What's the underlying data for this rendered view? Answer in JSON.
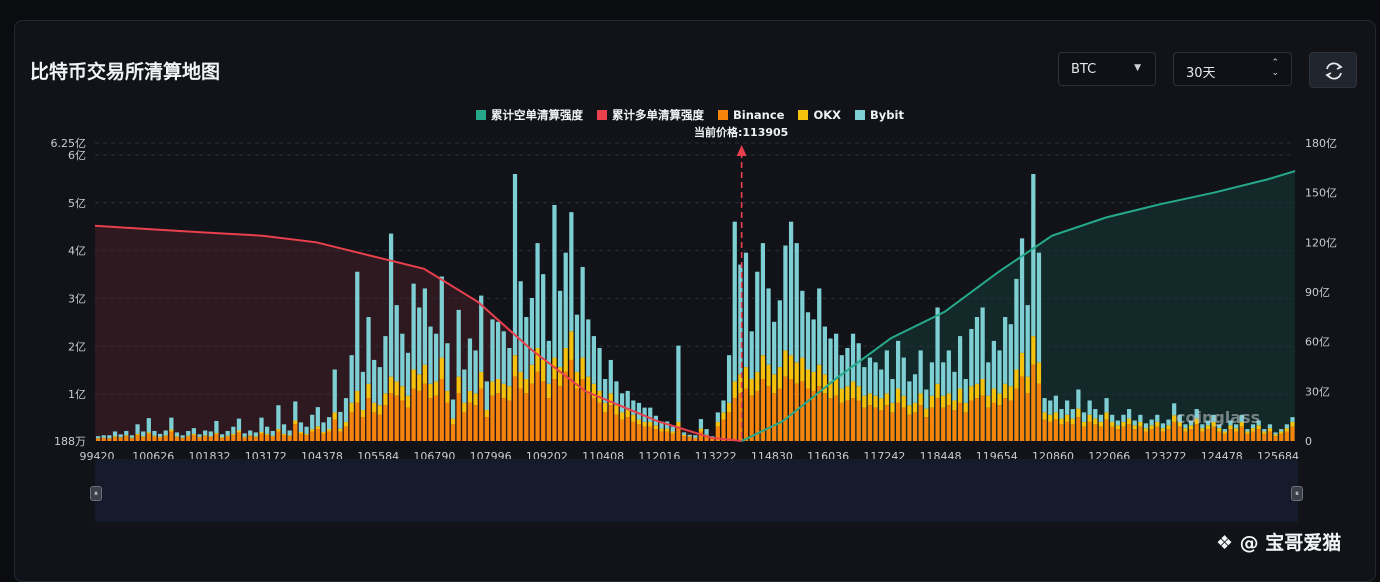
{
  "header": {
    "title": "比特币交易所清算地图",
    "coin_select": "BTC",
    "period_select": "30天"
  },
  "legend": [
    {
      "label": "累计空单清算强度",
      "color": "#26a98a"
    },
    {
      "label": "累计多单清算强度",
      "color": "#e8404c"
    },
    {
      "label": "Binance",
      "color": "#f5840c"
    },
    {
      "label": "OKX",
      "color": "#f4c20d"
    },
    {
      "label": "Bybit",
      "color": "#7ecfd4"
    }
  ],
  "watermark": "coinglass",
  "credit": "@ 宝哥爱猫",
  "chart_data": {
    "type": "bar",
    "current_price_label": "当前价格:113905",
    "current_price": 113905,
    "x_tick_labels": [
      "99420",
      "100626",
      "101832",
      "103172",
      "104378",
      "105584",
      "106790",
      "107996",
      "109202",
      "110408",
      "112016",
      "113222",
      "114830",
      "116036",
      "117242",
      "118448",
      "119654",
      "120860",
      "122066",
      "123272",
      "124478",
      "125684"
    ],
    "y_left_tick_labels": [
      "188万",
      "1亿",
      "2亿",
      "3亿",
      "4亿",
      "5亿",
      "6亿",
      "6.25亿"
    ],
    "y_left_ticks": [
      0.0188,
      1,
      2,
      3,
      4,
      5,
      6,
      6.25
    ],
    "y_left_range": [
      0.0188,
      6.25
    ],
    "y_left_unit": "亿",
    "y_right_tick_labels": [
      "0",
      "30亿",
      "60亿",
      "90亿",
      "120亿",
      "150亿",
      "180亿"
    ],
    "y_right_range": [
      0,
      180
    ],
    "y_right_unit": "亿",
    "x_range": [
      99420,
      126300
    ],
    "bar_step": 112,
    "bars": {
      "binance": [
        0.05,
        0.06,
        0.05,
        0.08,
        0.07,
        0.1,
        0.06,
        0.12,
        0.08,
        0.15,
        0.09,
        0.07,
        0.1,
        0.2,
        0.08,
        0.06,
        0.09,
        0.12,
        0.07,
        0.1,
        0.08,
        0.14,
        0.06,
        0.09,
        0.12,
        0.18,
        0.07,
        0.1,
        0.08,
        0.15,
        0.12,
        0.09,
        0.2,
        0.12,
        0.1,
        0.35,
        0.15,
        0.12,
        0.2,
        0.25,
        0.15,
        0.2,
        0.45,
        0.2,
        0.3,
        0.6,
        0.8,
        0.5,
        0.9,
        0.6,
        0.55,
        0.75,
        1.0,
        0.95,
        0.85,
        0.7,
        1.1,
        1.05,
        1.2,
        0.9,
        0.95,
        1.3,
        0.8,
        0.35,
        1.0,
        0.6,
        0.8,
        0.75,
        1.1,
        0.5,
        0.95,
        1.0,
        0.9,
        0.85,
        1.35,
        1.1,
        1.0,
        1.2,
        1.45,
        1.25,
        0.9,
        1.3,
        1.15,
        1.45,
        1.7,
        1.1,
        1.3,
        1.0,
        0.9,
        0.8,
        0.6,
        0.75,
        0.55,
        0.45,
        0.5,
        0.4,
        0.35,
        0.3,
        0.3,
        0.25,
        0.2,
        0.2,
        0.15,
        0.3,
        0.1,
        0.08,
        0.05,
        0.2,
        0.1,
        0.05,
        0.3,
        0.45,
        0.6,
        0.9,
        1.0,
        1.1,
        0.95,
        1.05,
        1.3,
        1.15,
        1.0,
        1.1,
        1.35,
        1.3,
        1.2,
        1.25,
        1.1,
        1.05,
        1.15,
        1.0,
        0.9,
        0.95,
        0.8,
        0.85,
        0.9,
        0.85,
        0.7,
        0.75,
        0.7,
        0.65,
        0.75,
        0.6,
        0.8,
        0.7,
        0.55,
        0.6,
        0.75,
        0.5,
        0.7,
        0.9,
        0.7,
        0.75,
        0.65,
        0.8,
        0.6,
        0.85,
        0.9,
        0.95,
        0.7,
        0.8,
        0.75,
        0.9,
        0.85,
        1.1,
        1.35,
        1.0,
        1.6,
        1.2,
        0.45,
        0.4,
        0.45,
        0.35,
        0.4,
        0.35,
        0.5,
        0.3,
        0.4,
        0.35,
        0.3,
        0.45,
        0.3,
        0.25,
        0.3,
        0.35,
        0.25,
        0.3,
        0.2,
        0.25,
        0.3,
        0.2,
        0.25,
        0.4,
        0.3,
        0.2,
        0.25,
        0.35,
        0.2,
        0.25,
        0.3,
        0.2,
        0.15,
        0.25,
        0.2,
        0.3,
        0.15,
        0.2,
        0.25,
        0.15,
        0.2,
        0.1,
        0.15,
        0.2,
        0.3
      ],
      "okx": [
        0.01,
        0.01,
        0.01,
        0.02,
        0.01,
        0.02,
        0.01,
        0.03,
        0.02,
        0.03,
        0.02,
        0.02,
        0.02,
        0.04,
        0.02,
        0.01,
        0.02,
        0.03,
        0.02,
        0.02,
        0.02,
        0.03,
        0.02,
        0.02,
        0.03,
        0.04,
        0.02,
        0.02,
        0.02,
        0.04,
        0.03,
        0.02,
        0.05,
        0.03,
        0.02,
        0.08,
        0.04,
        0.03,
        0.05,
        0.06,
        0.04,
        0.05,
        0.15,
        0.06,
        0.1,
        0.2,
        0.25,
        0.15,
        0.3,
        0.2,
        0.2,
        0.25,
        0.35,
        0.3,
        0.3,
        0.25,
        0.4,
        0.35,
        0.4,
        0.3,
        0.3,
        0.45,
        0.25,
        0.12,
        0.35,
        0.2,
        0.25,
        0.25,
        0.35,
        0.15,
        0.3,
        0.3,
        0.3,
        0.3,
        0.45,
        0.35,
        0.3,
        0.4,
        0.5,
        0.45,
        0.3,
        0.45,
        0.4,
        0.5,
        0.6,
        0.35,
        0.45,
        0.35,
        0.3,
        0.25,
        0.2,
        0.25,
        0.2,
        0.15,
        0.15,
        0.15,
        0.1,
        0.1,
        0.1,
        0.08,
        0.06,
        0.06,
        0.05,
        0.1,
        0.03,
        0.02,
        0.02,
        0.06,
        0.03,
        0.02,
        0.1,
        0.15,
        0.2,
        0.35,
        0.4,
        0.45,
        0.35,
        0.4,
        0.5,
        0.45,
        0.4,
        0.45,
        0.55,
        0.5,
        0.45,
        0.5,
        0.4,
        0.4,
        0.45,
        0.4,
        0.35,
        0.35,
        0.3,
        0.3,
        0.35,
        0.3,
        0.25,
        0.25,
        0.25,
        0.25,
        0.25,
        0.2,
        0.3,
        0.25,
        0.2,
        0.2,
        0.25,
        0.18,
        0.25,
        0.3,
        0.25,
        0.25,
        0.2,
        0.3,
        0.2,
        0.3,
        0.3,
        0.35,
        0.25,
        0.3,
        0.25,
        0.3,
        0.3,
        0.4,
        0.5,
        0.35,
        0.6,
        0.45,
        0.15,
        0.15,
        0.15,
        0.12,
        0.15,
        0.12,
        0.18,
        0.1,
        0.15,
        0.12,
        0.1,
        0.15,
        0.1,
        0.08,
        0.1,
        0.12,
        0.08,
        0.1,
        0.07,
        0.08,
        0.1,
        0.07,
        0.08,
        0.14,
        0.1,
        0.07,
        0.08,
        0.12,
        0.07,
        0.08,
        0.1,
        0.07,
        0.05,
        0.08,
        0.07,
        0.1,
        0.05,
        0.07,
        0.08,
        0.05,
        0.07,
        0.04,
        0.05,
        0.07,
        0.1
      ],
      "bybit": [
        0.04,
        0.05,
        0.06,
        0.1,
        0.06,
        0.09,
        0.05,
        0.2,
        0.1,
        0.3,
        0.1,
        0.06,
        0.1,
        0.25,
        0.08,
        0.05,
        0.1,
        0.12,
        0.05,
        0.1,
        0.1,
        0.25,
        0.06,
        0.1,
        0.15,
        0.25,
        0.07,
        0.1,
        0.08,
        0.3,
        0.15,
        0.1,
        0.5,
        0.2,
        0.1,
        0.4,
        0.2,
        0.15,
        0.3,
        0.4,
        0.2,
        0.25,
        0.9,
        0.35,
        0.5,
        1.0,
        2.5,
        0.8,
        1.4,
        0.9,
        0.8,
        1.2,
        3.0,
        1.6,
        1.1,
        0.9,
        1.8,
        1.4,
        1.6,
        1.2,
        1.0,
        1.7,
        1.0,
        0.4,
        1.4,
        0.7,
        1.1,
        0.9,
        1.6,
        0.6,
        1.3,
        1.2,
        1.1,
        0.8,
        3.8,
        1.9,
        1.3,
        1.4,
        2.2,
        1.8,
        0.9,
        3.2,
        1.6,
        2.0,
        2.5,
        1.2,
        1.9,
        1.2,
        1.0,
        0.9,
        0.5,
        0.7,
        0.5,
        0.4,
        0.4,
        0.3,
        0.35,
        0.3,
        0.3,
        0.2,
        0.15,
        0.15,
        0.1,
        1.6,
        0.05,
        0.03,
        0.05,
        0.2,
        0.12,
        0.03,
        0.2,
        0.25,
        1.0,
        3.35,
        2.3,
        2.4,
        1.0,
        2.1,
        2.35,
        1.6,
        1.1,
        1.4,
        2.2,
        2.8,
        2.5,
        1.4,
        1.2,
        1.1,
        1.6,
        1.0,
        0.9,
        0.95,
        0.7,
        0.8,
        1.0,
        0.9,
        0.6,
        0.75,
        0.7,
        0.6,
        0.9,
        0.5,
        1.0,
        0.8,
        0.5,
        0.6,
        0.9,
        0.4,
        0.7,
        1.6,
        0.7,
        0.9,
        0.6,
        1.1,
        0.5,
        1.2,
        1.4,
        1.5,
        0.7,
        1.0,
        0.9,
        1.4,
        1.3,
        1.9,
        2.4,
        1.5,
        3.4,
        2.3,
        0.3,
        0.3,
        0.35,
        0.2,
        0.3,
        0.2,
        0.4,
        0.2,
        0.3,
        0.2,
        0.15,
        0.3,
        0.15,
        0.1,
        0.15,
        0.2,
        0.1,
        0.15,
        0.1,
        0.12,
        0.15,
        0.1,
        0.12,
        0.25,
        0.15,
        0.08,
        0.1,
        0.2,
        0.08,
        0.1,
        0.15,
        0.08,
        0.05,
        0.1,
        0.08,
        0.15,
        0.05,
        0.08,
        0.1,
        0.05,
        0.08,
        0.04,
        0.05,
        0.08,
        0.1
      ]
    },
    "bar_colors": {
      "binance": "#f5840c",
      "okx": "#f4c20d",
      "bybit": "#7ecfd4"
    },
    "cumulative_long": {
      "name": "累计多单清算强度",
      "x": [
        99420,
        100626,
        101832,
        103172,
        104378,
        105584,
        106790,
        107996,
        109202,
        110408,
        112016,
        113222,
        113905
      ],
      "y": [
        130,
        128,
        126,
        124,
        120,
        112,
        104,
        84,
        55,
        30,
        12,
        2,
        0
      ]
    },
    "cumulative_short": {
      "name": "累计空单清算强度",
      "x": [
        113905,
        114830,
        116036,
        117242,
        118448,
        119654,
        120860,
        122066,
        123272,
        124478,
        125684,
        126300
      ],
      "y": [
        0,
        12,
        38,
        62,
        78,
        102,
        124,
        135,
        143,
        150,
        158,
        163
      ]
    }
  }
}
